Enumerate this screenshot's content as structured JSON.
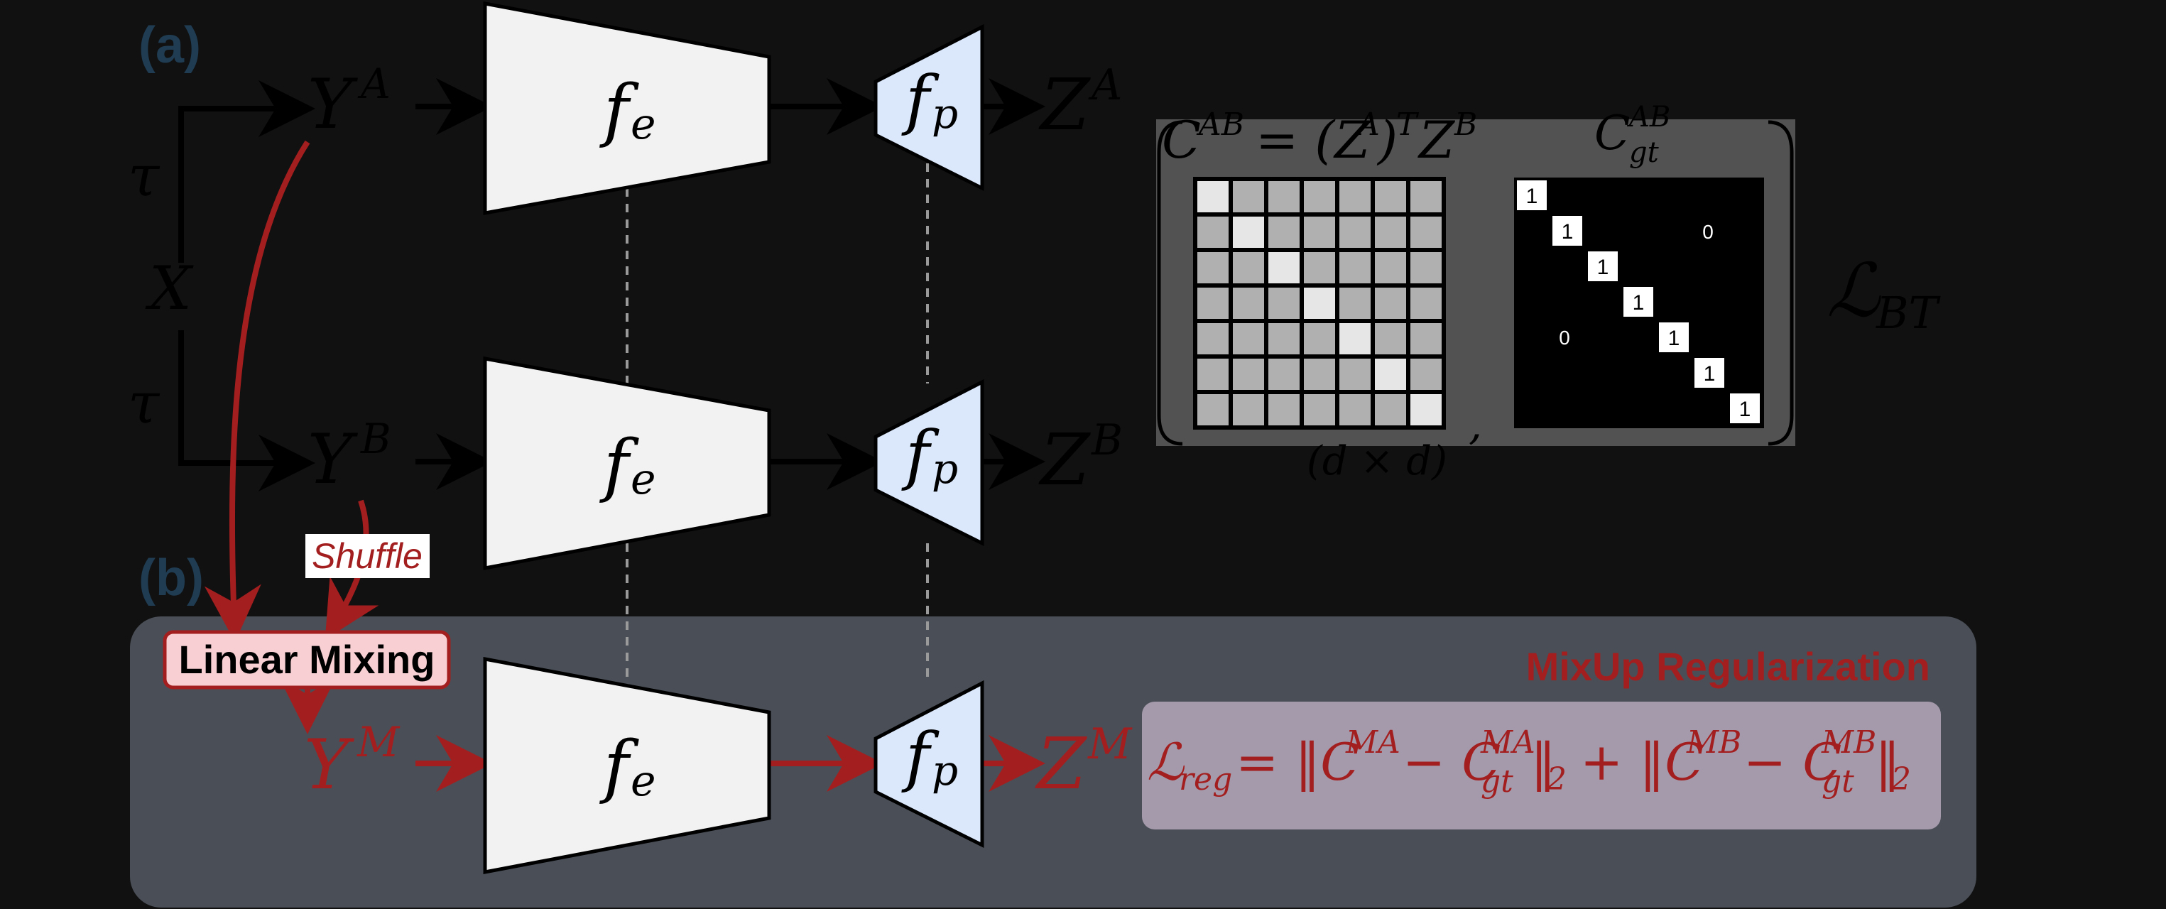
{
  "panels": {
    "a_label": "(a)",
    "b_label": "(b)"
  },
  "inputs": {
    "x": "X",
    "tau_top": "τ",
    "tau_bottom": "τ"
  },
  "views": {
    "ya_base": "Y",
    "ya_sup": "A",
    "yb_base": "Y",
    "yb_sup": "B",
    "ym_base": "Y",
    "ym_sup": "M"
  },
  "networks": {
    "encoder_base": "f",
    "encoder_sub": "e",
    "projector_base": "f",
    "projector_sub": "p"
  },
  "outputs": {
    "za_base": "Z",
    "za_sup": "A",
    "zb_base": "Z",
    "zb_sup": "B",
    "zm_base": "Z",
    "zm_sup": "M"
  },
  "correlation": {
    "eq_c": "C",
    "eq_c_sup": "AB",
    "eq_rhs_open": "= (Z",
    "eq_rhs_sup1": "A",
    "eq_rhs_mid": ")",
    "eq_rhs_T": "T",
    "eq_rhs_z": "Z",
    "eq_rhs_sup2": "B",
    "gt_base": "C",
    "gt_sup": "AB",
    "gt_sub": "gt",
    "dims": "(d × d)",
    "comma": ",",
    "gt_one": "1",
    "gt_zero": "0"
  },
  "loss_bt": {
    "base": "ℒ",
    "sub": "BT"
  },
  "shuffle_label": "Shuffle",
  "mixing_label": "Linear Mixing",
  "mixup_title": "MixUp Regularization",
  "reg_loss": {
    "l": "ℒ",
    "l_sub": "reg",
    "eq": "= ‖C",
    "s1": "MA",
    "minus": "− C",
    "s2": "MA",
    "s2_sub": "gt",
    "n1": "‖",
    "n1_sub": "2",
    "plus": "+ ‖C",
    "s3": "MB",
    "minus2": "− C",
    "s4": "MB",
    "s4_sub": "gt",
    "n2": "‖",
    "n2_sub": "2"
  },
  "colors": {
    "background": "#111111",
    "panel_b": "#4a4f57",
    "red": "#a31f1f",
    "encoder_fill": "#f2f2f2",
    "projector_fill": "#dbe8fb",
    "matrix_panel": "#525252",
    "reg_box": "#a59aab",
    "panel_label": "#1f3c52"
  }
}
